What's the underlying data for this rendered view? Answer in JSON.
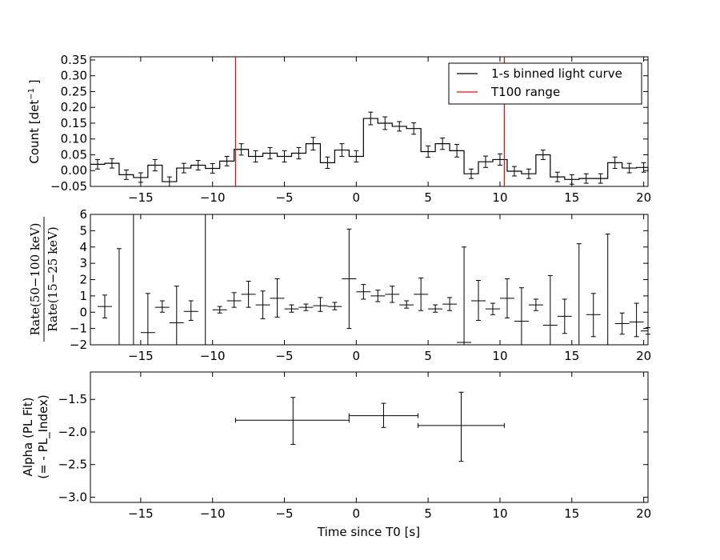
{
  "chart_data": [
    {
      "type": "line",
      "xlim": [
        -18.5,
        20.3
      ],
      "ylim": [
        -0.05,
        0.36
      ],
      "x_ticks": [
        -15,
        -10,
        -5,
        0,
        5,
        10,
        15,
        20
      ],
      "x_tick_labels": [
        "−15",
        "−10",
        "−5",
        "0",
        "5",
        "10",
        "15",
        "20"
      ],
      "y_ticks": [
        -0.05,
        0.0,
        0.05,
        0.1,
        0.15,
        0.2,
        0.25,
        0.3,
        0.35
      ],
      "y_tick_labels": [
        "−0.05",
        "0.00",
        "0.05",
        "0.10",
        "0.15",
        "0.20",
        "0.25",
        "0.30",
        "0.35"
      ],
      "ylabel_main": "Count [det",
      "ylabel_sup": "−1",
      "ylabel_close": " ]",
      "legend_position": "top-right",
      "legend": [
        {
          "label": "1-s binned light curve",
          "color": "#000000"
        },
        {
          "label": "T100 range",
          "color": "#ff0000"
        }
      ],
      "vlines": [
        -8.4,
        10.3
      ],
      "bin_start": -18.5,
      "bin_width": 1,
      "values": [
        0.02,
        0.023,
        -0.013,
        -0.022,
        0.017,
        -0.035,
        0.008,
        0.017,
        0.007,
        0.03,
        0.067,
        0.045,
        0.055,
        0.045,
        0.055,
        0.085,
        0.025,
        0.065,
        0.045,
        0.165,
        0.15,
        0.14,
        0.133,
        0.06,
        0.085,
        0.063,
        -0.01,
        0.028,
        0.035,
        -0.002,
        -0.01,
        0.05,
        -0.02,
        -0.028,
        -0.025,
        -0.025,
        0.025,
        0.008,
        0.01,
        -0.005
      ],
      "errors": [
        0.015,
        0.015,
        0.015,
        0.015,
        0.018,
        0.015,
        0.015,
        0.015,
        0.015,
        0.015,
        0.018,
        0.018,
        0.018,
        0.018,
        0.018,
        0.02,
        0.018,
        0.02,
        0.018,
        0.02,
        0.02,
        0.015,
        0.018,
        0.018,
        0.018,
        0.02,
        0.015,
        0.018,
        0.018,
        0.015,
        0.015,
        0.015,
        0.015,
        0.015,
        0.015,
        0.015,
        0.018,
        0.015,
        0.015,
        0.015
      ]
    },
    {
      "type": "scatter",
      "xlim": [
        -18.5,
        20.3
      ],
      "ylim": [
        -2,
        6
      ],
      "x_ticks": [
        -15,
        -10,
        -5,
        0,
        5,
        10,
        15,
        20
      ],
      "x_tick_labels": [
        "−15",
        "−10",
        "−5",
        "0",
        "5",
        "10",
        "15",
        "20"
      ],
      "y_ticks": [
        -2,
        -1,
        0,
        1,
        2,
        3,
        4,
        5,
        6
      ],
      "y_tick_labels": [
        "−2",
        "−1",
        "0",
        "1",
        "2",
        "3",
        "4",
        "5",
        "6"
      ],
      "ylabel_numerator": "Rate(50−100 keV)",
      "ylabel_denominator": "Rate(15−25 keV)",
      "points": [
        {
          "x": -17.5,
          "y": 0.35,
          "ylo": -0.35,
          "yhi": 1.05
        },
        {
          "x": -16.5,
          "y": -2.5,
          "ylo": -2.5,
          "yhi": 3.9
        },
        {
          "x": -15.5,
          "y": -2.5,
          "ylo": -2.5,
          "yhi": 6.5
        },
        {
          "x": -14.5,
          "y": -1.25,
          "ylo": -2.5,
          "yhi": 1.15
        },
        {
          "x": -13.5,
          "y": 0.3,
          "ylo": 0.0,
          "yhi": 0.7
        },
        {
          "x": -12.5,
          "y": -0.65,
          "ylo": -2.5,
          "yhi": 1.6
        },
        {
          "x": -11.5,
          "y": 0.05,
          "ylo": -0.5,
          "yhi": 0.7
        },
        {
          "x": -10.5,
          "y": -2.5,
          "ylo": -2.5,
          "yhi": 6.5
        },
        {
          "x": -9.5,
          "y": 0.15,
          "ylo": -0.05,
          "yhi": 0.35
        },
        {
          "x": -8.5,
          "y": 0.7,
          "ylo": 0.3,
          "yhi": 1.2
        },
        {
          "x": -7.5,
          "y": 1.1,
          "ylo": 0.3,
          "yhi": 1.9
        },
        {
          "x": -6.5,
          "y": 0.45,
          "ylo": -0.4,
          "yhi": 1.3
        },
        {
          "x": -5.5,
          "y": 0.85,
          "ylo": -0.3,
          "yhi": 2.05
        },
        {
          "x": -4.5,
          "y": 0.2,
          "ylo": 0.0,
          "yhi": 0.45
        },
        {
          "x": -3.5,
          "y": 0.3,
          "ylo": 0.1,
          "yhi": 0.5
        },
        {
          "x": -2.5,
          "y": 0.4,
          "ylo": 0.05,
          "yhi": 0.9
        },
        {
          "x": -1.5,
          "y": 0.35,
          "ylo": 0.15,
          "yhi": 0.6
        },
        {
          "x": -0.5,
          "y": 2.05,
          "ylo": -1.0,
          "yhi": 5.1
        },
        {
          "x": 0.5,
          "y": 1.25,
          "ylo": 0.8,
          "yhi": 1.7
        },
        {
          "x": 1.5,
          "y": 1.0,
          "ylo": 0.65,
          "yhi": 1.35
        },
        {
          "x": 2.5,
          "y": 1.1,
          "ylo": 0.6,
          "yhi": 1.6
        },
        {
          "x": 3.5,
          "y": 0.45,
          "ylo": 0.25,
          "yhi": 0.7
        },
        {
          "x": 4.5,
          "y": 1.1,
          "ylo": 0.1,
          "yhi": 2.1
        },
        {
          "x": 5.5,
          "y": 0.2,
          "ylo": 0.0,
          "yhi": 0.45
        },
        {
          "x": 6.5,
          "y": 0.5,
          "ylo": 0.1,
          "yhi": 0.9
        },
        {
          "x": 7.5,
          "y": -1.85,
          "ylo": -2.5,
          "yhi": 4.0
        },
        {
          "x": 8.5,
          "y": 0.7,
          "ylo": -0.5,
          "yhi": 1.95
        },
        {
          "x": 9.5,
          "y": 0.2,
          "ylo": -0.15,
          "yhi": 0.55
        },
        {
          "x": 10.5,
          "y": 0.85,
          "ylo": -0.35,
          "yhi": 2.05
        },
        {
          "x": 11.5,
          "y": -0.55,
          "ylo": -2.5,
          "yhi": 1.5
        },
        {
          "x": 12.5,
          "y": 0.45,
          "ylo": 0.1,
          "yhi": 0.8
        },
        {
          "x": 13.5,
          "y": -0.8,
          "ylo": -2.5,
          "yhi": 2.25
        },
        {
          "x": 14.5,
          "y": -0.25,
          "ylo": -1.3,
          "yhi": 0.8
        },
        {
          "x": 15.5,
          "y": -2.5,
          "ylo": -2.5,
          "yhi": 4.2
        },
        {
          "x": 16.5,
          "y": -0.15,
          "ylo": -1.5,
          "yhi": 1.15
        },
        {
          "x": 17.5,
          "y": -2.5,
          "ylo": -2.5,
          "yhi": 4.8
        },
        {
          "x": 18.5,
          "y": -0.7,
          "ylo": -1.35,
          "yhi": -0.05
        },
        {
          "x": 19.5,
          "y": -0.6,
          "ylo": -1.5,
          "yhi": 0.55
        },
        {
          "x": 20.3,
          "y": -1.15,
          "ylo": -1.35,
          "yhi": -0.95
        }
      ]
    },
    {
      "type": "scatter",
      "xlim": [
        -18.5,
        20.3
      ],
      "ylim": [
        -3.08,
        -1.08
      ],
      "x_ticks": [
        -15,
        -10,
        -5,
        0,
        5,
        10,
        15,
        20
      ],
      "x_tick_labels": [
        "−15",
        "−10",
        "−5",
        "0",
        "5",
        "10",
        "15",
        "20"
      ],
      "y_ticks": [
        -3.0,
        -2.5,
        -2.0,
        -1.5
      ],
      "y_tick_labels": [
        "−3.0",
        "−2.5",
        "−2.0",
        "−1.5"
      ],
      "ylabel_line1": "Alpha (PL Fit)",
      "ylabel_line2": "(= - PL_Index)",
      "xlabel": "Time since T0 [s]",
      "points": [
        {
          "x": -4.4,
          "xlo": -8.4,
          "xhi": -0.5,
          "y": -1.82,
          "ylo": -2.19,
          "yhi": -1.47
        },
        {
          "x": 1.9,
          "xlo": -0.5,
          "xhi": 4.3,
          "y": -1.75,
          "ylo": -1.93,
          "yhi": -1.56
        },
        {
          "x": 7.3,
          "xlo": 4.3,
          "xhi": 10.3,
          "y": -1.9,
          "ylo": -2.45,
          "yhi": -1.39
        }
      ]
    }
  ]
}
